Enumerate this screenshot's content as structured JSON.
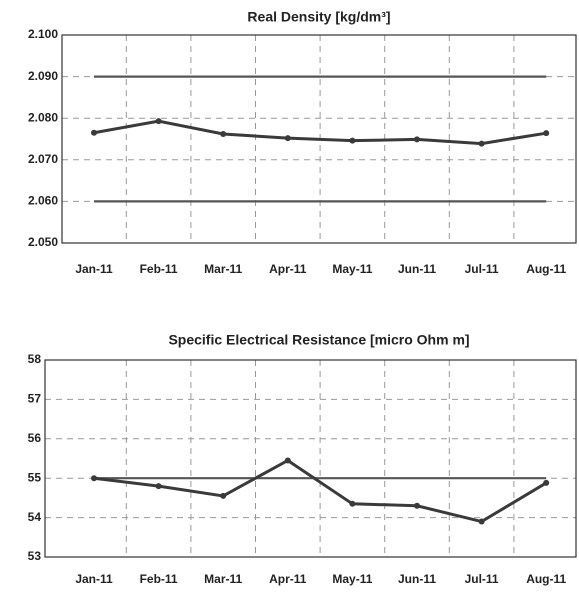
{
  "chart_data": [
    {
      "type": "line",
      "title": "Real Density  [kg/dm³]",
      "categories": [
        "Jan-11",
        "Feb-11",
        "Mar-11",
        "Apr-11",
        "May-11",
        "Jun-11",
        "Jul-11",
        "Aug-11"
      ],
      "series": [
        {
          "color": "#3a3a3a",
          "values": [
            2.0765,
            2.0793,
            2.0762,
            2.0752,
            2.0746,
            2.0749,
            2.0739,
            2.0764
          ]
        }
      ],
      "reference_lines": [
        2.09,
        2.06
      ],
      "ylim": [
        2.05,
        2.1
      ],
      "yticks": [
        {
          "value": 2.05,
          "label": "2.050"
        },
        {
          "value": 2.06,
          "label": "2.060"
        },
        {
          "value": 2.07,
          "label": "2.070"
        },
        {
          "value": 2.08,
          "label": "2.080"
        },
        {
          "value": 2.09,
          "label": "2.090"
        },
        {
          "value": 2.1,
          "label": "2.100"
        }
      ],
      "grid": true
    },
    {
      "type": "line",
      "title": "Specific Electrical Resistance   [micro Ohm m]",
      "categories": [
        "Jan-11",
        "Feb-11",
        "Mar-11",
        "Apr-11",
        "May-11",
        "Jun-11",
        "Jul-11",
        "Aug-11"
      ],
      "series": [
        {
          "color": "#3a3a3a",
          "values": [
            55.0,
            54.8,
            54.55,
            55.45,
            54.35,
            54.3,
            53.9,
            54.88
          ]
        }
      ],
      "reference_lines": [
        55
      ],
      "ylim": [
        53,
        58
      ],
      "yticks": [
        53,
        54,
        55,
        56,
        57,
        58
      ],
      "grid": true
    }
  ]
}
